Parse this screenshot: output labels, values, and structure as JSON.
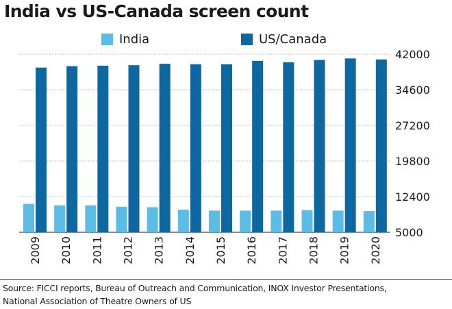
{
  "chart_data": {
    "type": "bar",
    "title": "India vs US-Canada screen count",
    "categories": [
      "2009",
      "2010",
      "2011",
      "2012",
      "2013",
      "2014",
      "2015",
      "2016",
      "2017",
      "2018",
      "2019",
      "2020"
    ],
    "series": [
      {
        "name": "India",
        "color": "#5bbde6",
        "values": [
          10900,
          10600,
          10600,
          10300,
          10200,
          9700,
          9500,
          9500,
          9500,
          9600,
          9500,
          9400
        ]
      },
      {
        "name": "US/Canada",
        "color": "#0d67a1",
        "values": [
          39200,
          39500,
          39600,
          39700,
          40000,
          39900,
          39900,
          40600,
          40300,
          40800,
          41100,
          40900
        ]
      }
    ],
    "ylim": [
      5000,
      42000
    ],
    "yticks": [
      "42000",
      "34600",
      "27200",
      "19800",
      "12400",
      "5000"
    ],
    "ytick_values": [
      42000,
      34600,
      27200,
      19800,
      12400,
      5000
    ],
    "grid": true,
    "legend": "top"
  },
  "source": {
    "line1": "Source: FICCI reports, Bureau of Outreach and Communication, INOX Investor Presentations,",
    "line2": "National Association of Theatre Owners of US"
  }
}
